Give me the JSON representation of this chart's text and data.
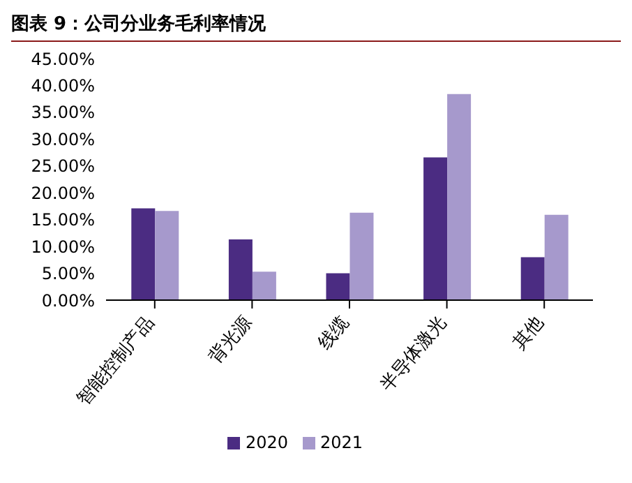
{
  "chart_data": {
    "type": "bar",
    "title": "图表 9：公司分业务毛利率情况",
    "categories": [
      "智能控制产品",
      "背光源",
      "线缆",
      "半导体激光",
      "其他"
    ],
    "series": [
      {
        "name": "2020",
        "color": "#4b2c82",
        "values": [
          17.1,
          11.3,
          5.0,
          26.6,
          8.0
        ]
      },
      {
        "name": "2021",
        "color": "#a699cc",
        "values": [
          16.6,
          5.3,
          16.3,
          38.4,
          15.9
        ]
      }
    ],
    "ylim": [
      0,
      45
    ],
    "yticks": [
      {
        "value": 0,
        "label": "0.00%"
      },
      {
        "value": 5,
        "label": "5.00%"
      },
      {
        "value": 10,
        "label": "10.00%"
      },
      {
        "value": 15,
        "label": "15.00%"
      },
      {
        "value": 20,
        "label": "20.00%"
      },
      {
        "value": 25,
        "label": "25.00%"
      },
      {
        "value": 30,
        "label": "30.00%"
      },
      {
        "value": 35,
        "label": "35.00%"
      },
      {
        "value": 40,
        "label": "40.00%"
      },
      {
        "value": 45,
        "label": "45.00%"
      }
    ],
    "legend": "bottom"
  }
}
